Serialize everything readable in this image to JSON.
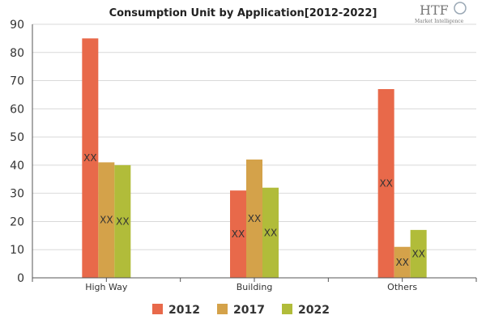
{
  "logo": {
    "text": "HTF",
    "subtext": "Market Intelligence"
  },
  "chart_data": {
    "type": "bar",
    "title": "Consumption Unit by  Application[2012-2022]",
    "xlabel": "",
    "ylabel": "",
    "categories": [
      "High Way",
      "Building",
      "Others"
    ],
    "series": [
      {
        "name": "2012",
        "color": "#e8694a",
        "values": [
          85,
          31,
          67
        ]
      },
      {
        "name": "2017",
        "color": "#d4a24a",
        "values": [
          41,
          42,
          11
        ]
      },
      {
        "name": "2022",
        "color": "#b1bc3a",
        "values": [
          40,
          32,
          17
        ]
      }
    ],
    "data_label": "XX",
    "ylim": [
      0,
      90
    ],
    "yticks": [
      0,
      10,
      20,
      30,
      40,
      50,
      60,
      70,
      80,
      90
    ],
    "grid": true,
    "legend_position": "bottom"
  }
}
